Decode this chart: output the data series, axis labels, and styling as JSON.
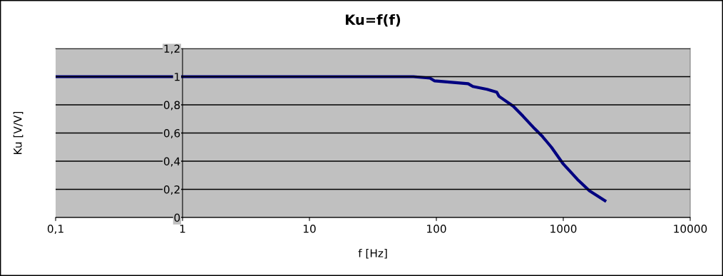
{
  "chart_data": {
    "type": "line",
    "title": "Ku=f(f)",
    "xlabel": "f [Hz]",
    "ylabel": "Ku [V/V]",
    "x": [
      0.1,
      1,
      10,
      50,
      66,
      89,
      97,
      178,
      194,
      251,
      299,
      312,
      404,
      481,
      596,
      678,
      805,
      1000,
      1295,
      1607,
      2128
    ],
    "series": [
      {
        "color": "#000080",
        "values": [
          1.0,
          1.0,
          1.0,
          1.0,
          1.0,
          0.99,
          0.97,
          0.95,
          0.93,
          0.91,
          0.89,
          0.86,
          0.79,
          0.72,
          0.63,
          0.58,
          0.5,
          0.38,
          0.27,
          0.19,
          0.12
        ]
      }
    ],
    "log": "x",
    "xlim": [
      0.1,
      10000
    ],
    "xticks": [
      {
        "value": 0.1,
        "label": "0,1"
      },
      1,
      10,
      100,
      1000,
      10000
    ],
    "ylim": [
      0,
      1.2
    ],
    "yticks": [
      0,
      {
        "value": 0.2,
        "label": "0,2"
      },
      {
        "value": 0.4,
        "label": "0,4"
      },
      {
        "value": 0.6,
        "label": "0,6"
      },
      {
        "value": 0.8,
        "label": "0,8"
      },
      1,
      {
        "value": 1.2,
        "label": "1,2"
      }
    ],
    "grid": "y",
    "marker": "none",
    "line_style": "solid"
  }
}
